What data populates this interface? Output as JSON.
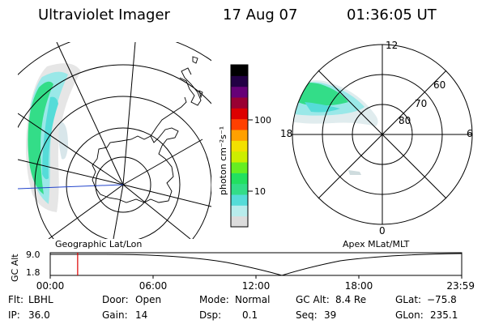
{
  "header": {
    "instrument": "Ultraviolet Imager",
    "date": "17 Aug 07",
    "time": "01:36:05 UT"
  },
  "colorbar": {
    "unit_label": "photon cm⁻²s⁻¹",
    "tick_100": "100",
    "tick_10": "10",
    "scale": "log",
    "colors_low_to_high": [
      "#dcdcdc",
      "#b8ecec",
      "#55dcd8",
      "#33dd88",
      "#22e060",
      "#66ee22",
      "#ccee00",
      "#f2e000",
      "#ffa000",
      "#ff4000",
      "#dd0000",
      "#990033",
      "#660077",
      "#220044",
      "#000000"
    ]
  },
  "left_map": {
    "label": "Geographic Lat/Lon",
    "auroral_colors": [
      "#33dd88",
      "#55dcd8",
      "#9ae8e8",
      "#e6e6e6"
    ]
  },
  "right_map": {
    "label": "Apex MLat/MLT",
    "mlt_12": "12",
    "mlt_18": "18",
    "mlt_6": "6",
    "mlt_0": "0",
    "lat_60": "60",
    "lat_70": "70",
    "lat_80": "80"
  },
  "timeline": {
    "ylabel": "GC Alt",
    "ytick_top": "9.0",
    "ytick_bottom": "1.8",
    "xticks": [
      "00:00",
      "06:00",
      "12:00",
      "18:00",
      "23:59"
    ],
    "current_time_hours": 1.6,
    "marker_color": "#dd0000"
  },
  "footer": {
    "filter_label": "Flt:",
    "filter_value": "LBHL",
    "ip_label": "IP:",
    "ip_value": "36.0",
    "door_label": "Door:",
    "door_value": "Open",
    "gain_label": "Gain:",
    "gain_value": "14",
    "mode_label": "Mode:",
    "mode_value": "Normal",
    "dsp_label": "Dsp:",
    "dsp_value": "0.1",
    "gcalt_label": "GC Alt:",
    "gcalt_value": "8.4 Re",
    "seq_label": "Seq:",
    "seq_value": "39",
    "glat_label": "GLat:",
    "glat_value": "−75.8",
    "glon_label": "GLon:",
    "glon_value": "235.1"
  }
}
